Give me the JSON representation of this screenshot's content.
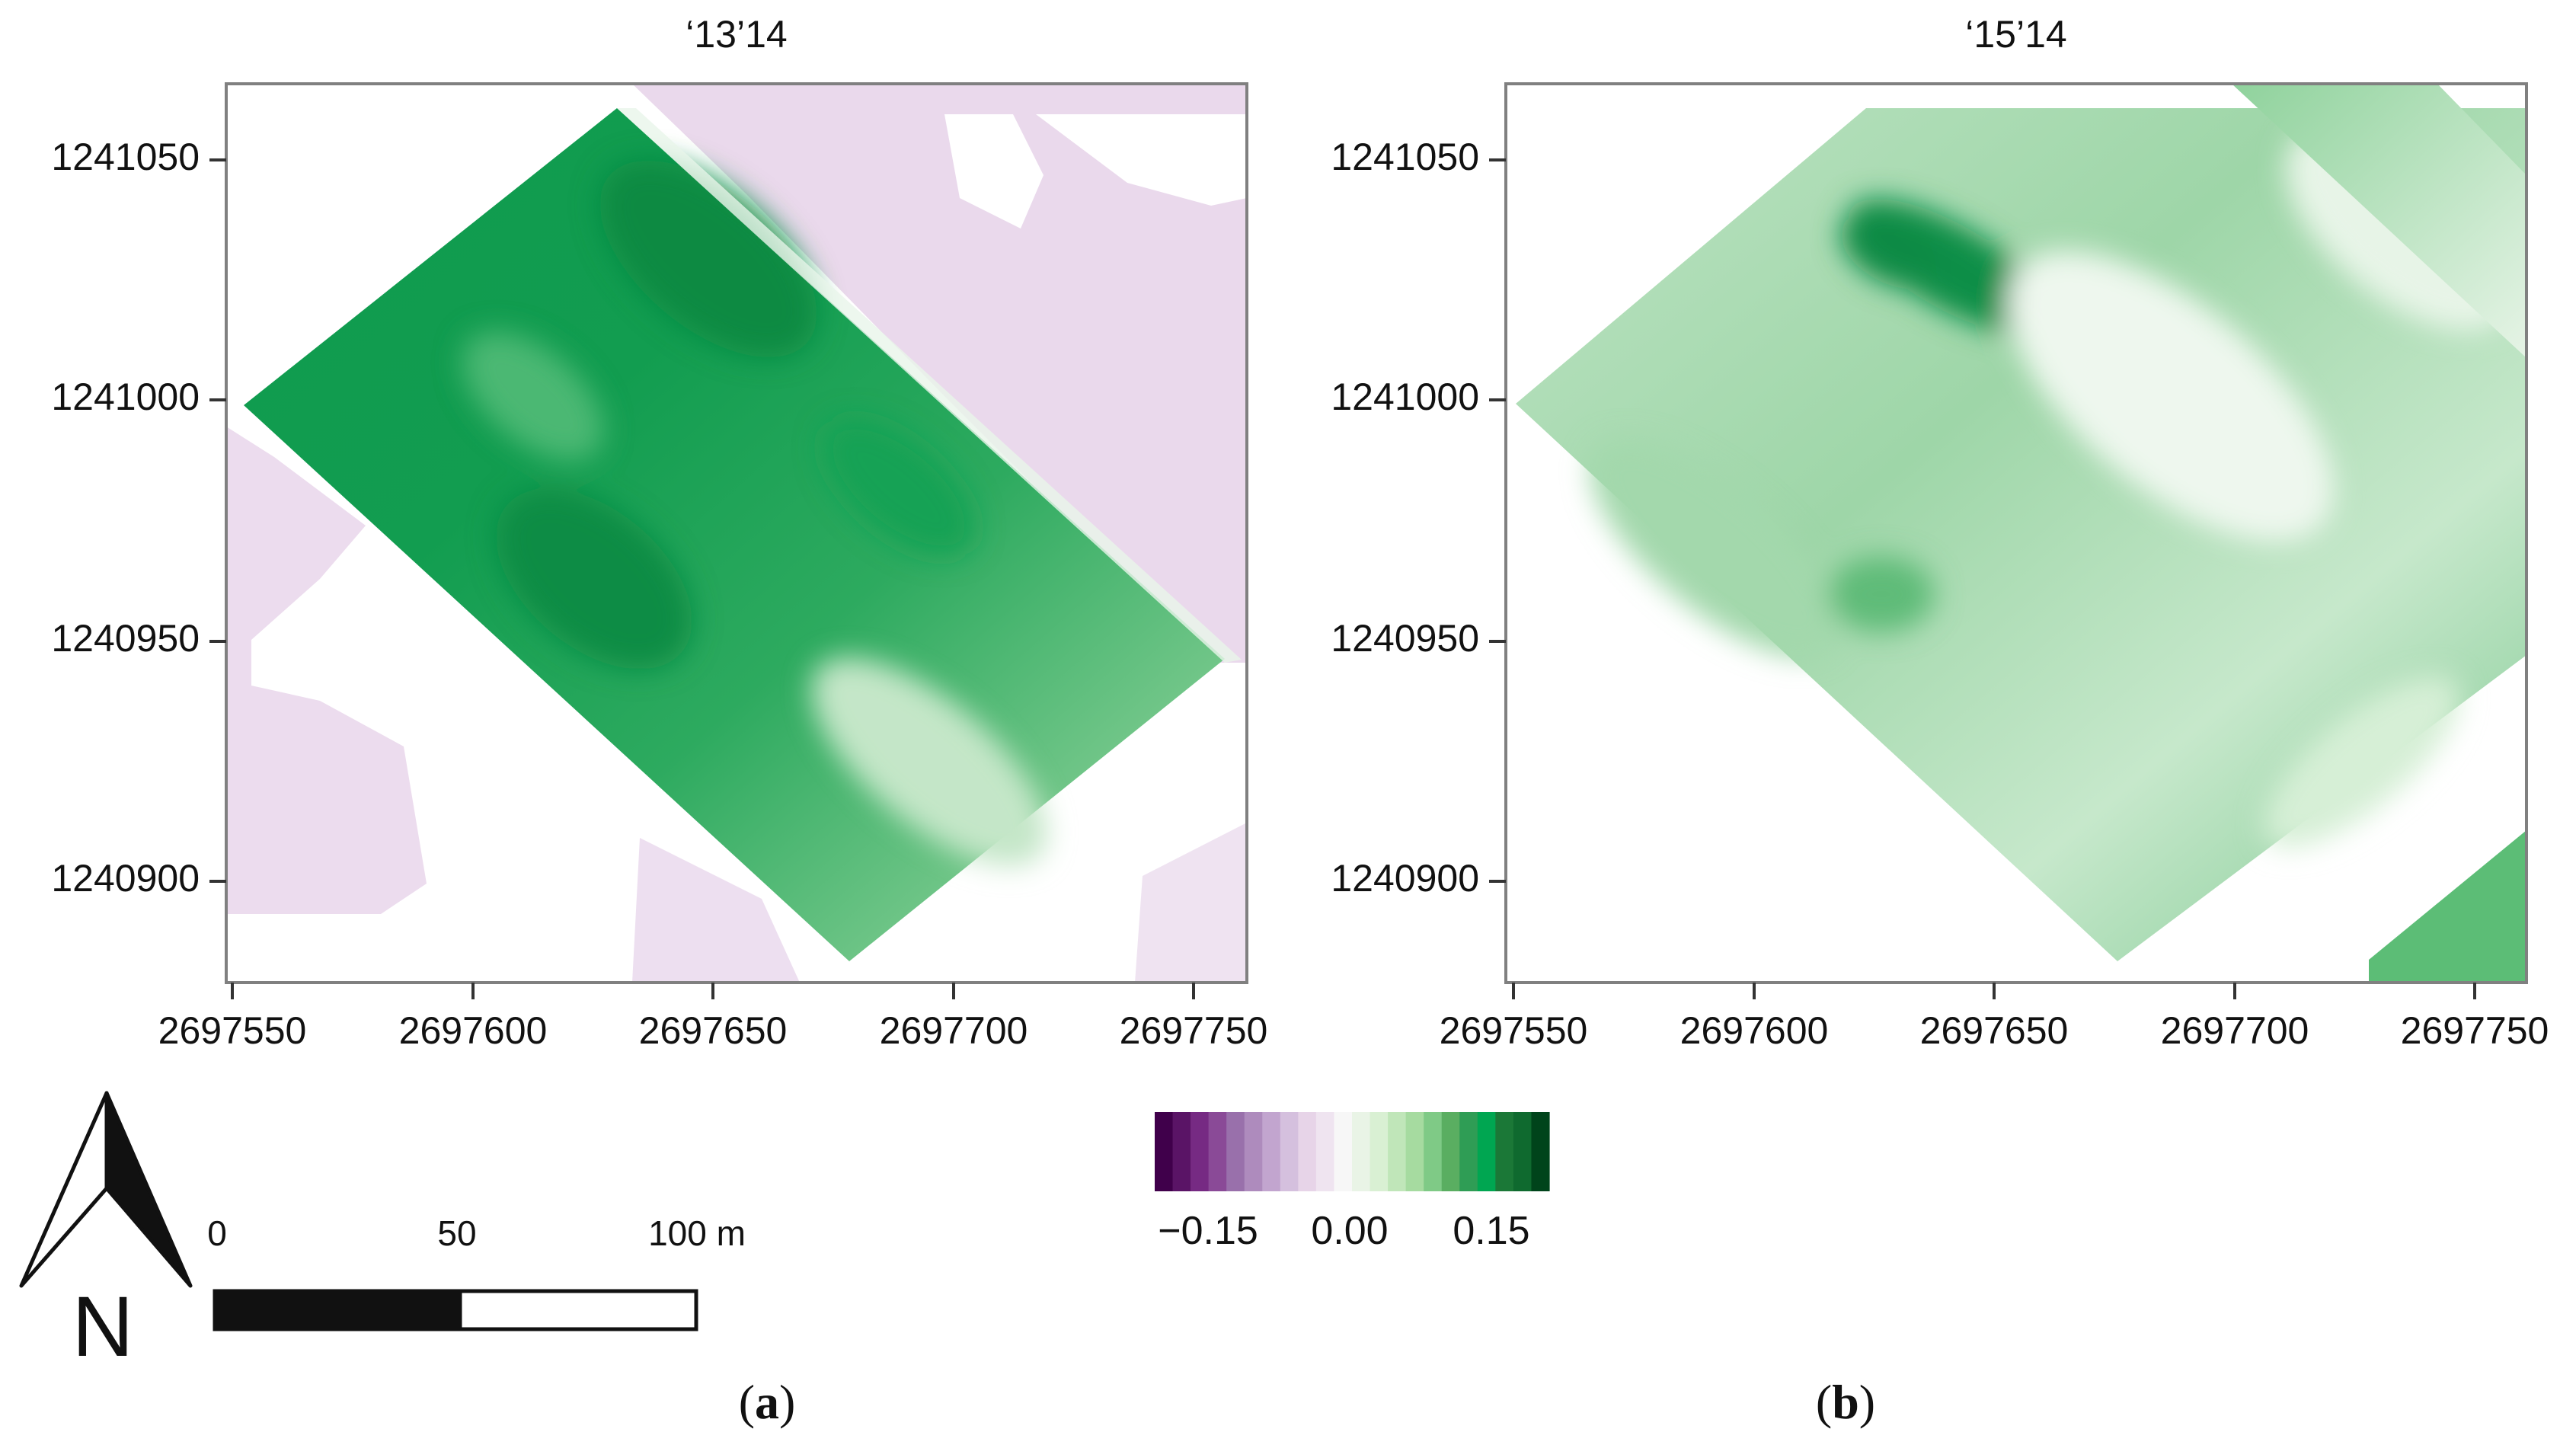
{
  "panels": [
    {
      "id": "a",
      "title": "‘13’14",
      "caption_letter": "a",
      "y_ticks": [
        "1241050",
        "1241000",
        "1240950",
        "1240900"
      ],
      "x_ticks": [
        "2697550",
        "2697600",
        "2697650",
        "2697700",
        "2697750"
      ]
    },
    {
      "id": "b",
      "title": "‘15’14",
      "caption_letter": "b",
      "y_ticks": [
        "1241050",
        "1241000",
        "1240950",
        "1240900"
      ],
      "x_ticks": [
        "2697550",
        "2697600",
        "2697650",
        "2697700",
        "2697750"
      ]
    }
  ],
  "colorbar": {
    "tick_labels": [
      "−0.15",
      "0.00",
      "0.15"
    ],
    "tick_values": [
      -0.15,
      0.0,
      0.15
    ],
    "range": [
      -0.2,
      0.2
    ],
    "colors": [
      "#40004b",
      "#5a1466",
      "#762a83",
      "#8a4a97",
      "#9970ab",
      "#ae8bbd",
      "#c2a5cf",
      "#d5c0de",
      "#e7d4e8",
      "#efe4f0",
      "#f7f7f7",
      "#e9f4e6",
      "#d9f0d3",
      "#c0e6b9",
      "#a6dba0",
      "#7fca86",
      "#5aae61",
      "#2f9d55",
      "#00a651",
      "#1b7837",
      "#0f6a2f",
      "#00441b"
    ]
  },
  "scale_bar": {
    "labels": [
      "0",
      "50",
      "100 m"
    ]
  },
  "north_arrow": {
    "letter": "N"
  },
  "caption": {
    "open": "(",
    "close": ")"
  },
  "colors": {
    "frame": "#808080",
    "purple_fill": "#ead9ec",
    "green_light": "#d6efcf",
    "green_mid": "#63c07a",
    "green_dark": "#11974a"
  }
}
